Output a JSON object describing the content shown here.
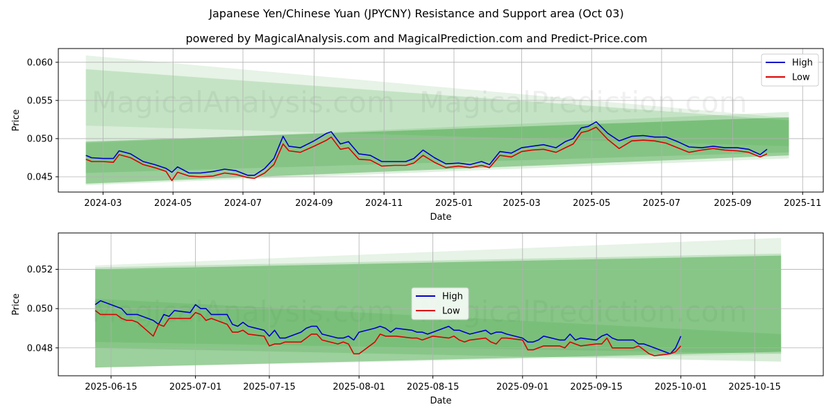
{
  "title": "Japanese Yen/Chinese Yuan (JPYCNY) Resistance and Support area (Oct 03)",
  "subtitle": "powered by MagicalAnalysis.com and MagicalPrediction.com and Predict-Price.com",
  "watermarks": [
    "MagicalAnalysis.com",
    "MagicalPrediction.com"
  ],
  "colors": {
    "high": "#0000cc",
    "low": "#dd0000",
    "band": "#2e9a2e",
    "grid": "#b0b0b0"
  },
  "chart_data": [
    {
      "type": "line",
      "xlabel": "Date",
      "ylabel": "Price",
      "xlim": [
        "2024-01-22",
        "2025-11-19"
      ],
      "ylim": [
        0.043,
        0.0618
      ],
      "grid": true,
      "legend": {
        "position": "top-right",
        "entries": [
          "High",
          "Low"
        ]
      },
      "x_ticks": [
        {
          "date": "2024-03-01",
          "label": "2024-03"
        },
        {
          "date": "2024-05-01",
          "label": "2024-05"
        },
        {
          "date": "2024-07-01",
          "label": "2024-07"
        },
        {
          "date": "2024-09-01",
          "label": "2024-09"
        },
        {
          "date": "2024-11-01",
          "label": "2024-11"
        },
        {
          "date": "2025-01-01",
          "label": "2025-01"
        },
        {
          "date": "2025-03-01",
          "label": "2025-03"
        },
        {
          "date": "2025-05-01",
          "label": "2025-05"
        },
        {
          "date": "2025-07-01",
          "label": "2025-07"
        },
        {
          "date": "2025-09-01",
          "label": "2025-09"
        },
        {
          "date": "2025-11-01",
          "label": "2025-11"
        }
      ],
      "y_ticks": [
        {
          "value": 0.045,
          "label": "0.045"
        },
        {
          "value": 0.05,
          "label": "0.050"
        },
        {
          "value": 0.055,
          "label": "0.055"
        },
        {
          "value": 0.06,
          "label": "0.060"
        }
      ],
      "bands": [
        {
          "x": [
            "2024-02-15",
            "2025-10-20"
          ],
          "upper": [
            0.0609,
            0.0527
          ],
          "lower": [
            0.0517,
            0.049
          ],
          "opacity": 0.12
        },
        {
          "x": [
            "2024-02-15",
            "2025-10-20"
          ],
          "upper": [
            0.0591,
            0.0524
          ],
          "lower": [
            0.0455,
            0.0482
          ],
          "opacity": 0.18
        },
        {
          "x": [
            "2024-02-15",
            "2025-10-20"
          ],
          "upper": [
            0.0496,
            0.0528
          ],
          "lower": [
            0.0441,
            0.0478
          ],
          "opacity": 0.4
        },
        {
          "x": [
            "2024-02-15",
            "2025-10-20"
          ],
          "upper": [
            0.0494,
            0.0535
          ],
          "lower": [
            0.0439,
            0.0474
          ],
          "opacity": 0.15
        }
      ],
      "series": [
        {
          "name": "High",
          "x": [
            "2024-02-15",
            "2024-02-20",
            "2024-03-01",
            "2024-03-10",
            "2024-03-15",
            "2024-03-25",
            "2024-04-05",
            "2024-04-15",
            "2024-04-25",
            "2024-04-30",
            "2024-05-05",
            "2024-05-15",
            "2024-05-25",
            "2024-06-05",
            "2024-06-15",
            "2024-06-25",
            "2024-07-05",
            "2024-07-11",
            "2024-07-20",
            "2024-07-28",
            "2024-08-05",
            "2024-08-10",
            "2024-08-20",
            "2024-09-01",
            "2024-09-12",
            "2024-09-16",
            "2024-09-24",
            "2024-10-01",
            "2024-10-10",
            "2024-10-20",
            "2024-10-30",
            "2024-11-10",
            "2024-11-20",
            "2024-11-27",
            "2024-12-05",
            "2024-12-15",
            "2024-12-25",
            "2025-01-05",
            "2025-01-15",
            "2025-01-25",
            "2025-02-01",
            "2025-02-10",
            "2025-02-20",
            "2025-03-01",
            "2025-03-10",
            "2025-03-20",
            "2025-03-31",
            "2025-04-08",
            "2025-04-15",
            "2025-04-22",
            "2025-04-28",
            "2025-05-05",
            "2025-05-15",
            "2025-05-25",
            "2025-06-05",
            "2025-06-15",
            "2025-06-25",
            "2025-07-05",
            "2025-07-15",
            "2025-07-25",
            "2025-08-05",
            "2025-08-15",
            "2025-08-25",
            "2025-09-05",
            "2025-09-15",
            "2025-09-25",
            "2025-10-01"
          ],
          "values": [
            0.0478,
            0.0475,
            0.0474,
            0.0474,
            0.0484,
            0.048,
            0.047,
            0.0466,
            0.0461,
            0.0456,
            0.0463,
            0.0455,
            0.0455,
            0.0457,
            0.046,
            0.0458,
            0.0452,
            0.0452,
            0.0461,
            0.0474,
            0.0503,
            0.049,
            0.0488,
            0.0497,
            0.0507,
            0.0509,
            0.0493,
            0.0496,
            0.048,
            0.0478,
            0.047,
            0.047,
            0.047,
            0.0474,
            0.0485,
            0.0475,
            0.0467,
            0.0468,
            0.0466,
            0.047,
            0.0466,
            0.0483,
            0.0481,
            0.0488,
            0.049,
            0.0492,
            0.0488,
            0.0496,
            0.05,
            0.0514,
            0.0516,
            0.0522,
            0.0507,
            0.0497,
            0.0503,
            0.0504,
            0.0502,
            0.0502,
            0.0496,
            0.0489,
            0.0488,
            0.049,
            0.0488,
            0.0488,
            0.0486,
            0.0479,
            0.0486
          ]
        },
        {
          "name": "Low",
          "x": [
            "2024-02-15",
            "2024-02-20",
            "2024-03-01",
            "2024-03-10",
            "2024-03-15",
            "2024-03-25",
            "2024-04-05",
            "2024-04-15",
            "2024-04-25",
            "2024-04-30",
            "2024-05-05",
            "2024-05-15",
            "2024-05-25",
            "2024-06-05",
            "2024-06-15",
            "2024-06-25",
            "2024-07-05",
            "2024-07-11",
            "2024-07-20",
            "2024-07-28",
            "2024-08-05",
            "2024-08-10",
            "2024-08-20",
            "2024-09-01",
            "2024-09-12",
            "2024-09-16",
            "2024-09-24",
            "2024-10-01",
            "2024-10-10",
            "2024-10-20",
            "2024-10-30",
            "2024-11-10",
            "2024-11-20",
            "2024-11-27",
            "2024-12-05",
            "2024-12-15",
            "2024-12-25",
            "2025-01-05",
            "2025-01-15",
            "2025-01-25",
            "2025-02-01",
            "2025-02-10",
            "2025-02-20",
            "2025-03-01",
            "2025-03-10",
            "2025-03-20",
            "2025-03-31",
            "2025-04-08",
            "2025-04-15",
            "2025-04-22",
            "2025-04-28",
            "2025-05-05",
            "2025-05-15",
            "2025-05-25",
            "2025-06-05",
            "2025-06-15",
            "2025-06-25",
            "2025-07-05",
            "2025-07-15",
            "2025-07-25",
            "2025-08-05",
            "2025-08-15",
            "2025-08-25",
            "2025-09-05",
            "2025-09-15",
            "2025-09-25",
            "2025-10-01"
          ],
          "values": [
            0.0473,
            0.047,
            0.047,
            0.0469,
            0.0479,
            0.0475,
            0.0466,
            0.0462,
            0.0457,
            0.0445,
            0.0456,
            0.0451,
            0.045,
            0.0451,
            0.0455,
            0.0453,
            0.0449,
            0.0448,
            0.0455,
            0.0466,
            0.0493,
            0.0484,
            0.0482,
            0.049,
            0.0498,
            0.0502,
            0.0486,
            0.0488,
            0.0473,
            0.0472,
            0.0464,
            0.0465,
            0.0465,
            0.0468,
            0.0478,
            0.0469,
            0.0462,
            0.0464,
            0.0462,
            0.0465,
            0.0462,
            0.0478,
            0.0476,
            0.0483,
            0.0485,
            0.0486,
            0.0482,
            0.0488,
            0.0493,
            0.0508,
            0.051,
            0.0515,
            0.0499,
            0.0487,
            0.0497,
            0.0498,
            0.0497,
            0.0494,
            0.0488,
            0.0482,
            0.0485,
            0.0487,
            0.0485,
            0.0484,
            0.0482,
            0.0476,
            0.048
          ]
        }
      ]
    },
    {
      "type": "line",
      "xlabel": "Date",
      "ylabel": "Price",
      "xlim": [
        "2025-06-05",
        "2025-10-28"
      ],
      "ylim": [
        0.04658,
        0.05385
      ],
      "grid": true,
      "legend": {
        "position": "center",
        "entries": [
          "High",
          "Low"
        ]
      },
      "x_ticks": [
        {
          "date": "2025-06-15",
          "label": "2025-06-15"
        },
        {
          "date": "2025-07-01",
          "label": "2025-07-01"
        },
        {
          "date": "2025-07-15",
          "label": "2025-07-15"
        },
        {
          "date": "2025-08-01",
          "label": "2025-08-01"
        },
        {
          "date": "2025-08-15",
          "label": "2025-08-15"
        },
        {
          "date": "2025-09-01",
          "label": "2025-09-01"
        },
        {
          "date": "2025-09-15",
          "label": "2025-09-15"
        },
        {
          "date": "2025-10-01",
          "label": "2025-10-01"
        },
        {
          "date": "2025-10-15",
          "label": "2025-10-15"
        }
      ],
      "y_ticks": [
        {
          "value": 0.048,
          "label": "0.048"
        },
        {
          "value": 0.05,
          "label": "0.050"
        },
        {
          "value": 0.052,
          "label": "0.052"
        }
      ],
      "bands": [
        {
          "x": [
            "2025-06-12",
            "2025-10-20"
          ],
          "upper": [
            0.0522,
            0.0536
          ],
          "lower": [
            0.047,
            0.0477
          ],
          "opacity": 0.12
        },
        {
          "x": [
            "2025-06-12",
            "2025-10-20"
          ],
          "upper": [
            0.0521,
            0.0528
          ],
          "lower": [
            0.048,
            0.0473
          ],
          "opacity": 0.18
        },
        {
          "x": [
            "2025-06-12",
            "2025-10-20"
          ],
          "upper": [
            0.052,
            0.0527
          ],
          "lower": [
            0.047,
            0.0478
          ],
          "opacity": 0.4
        },
        {
          "x": [
            "2025-06-12",
            "2025-10-20"
          ],
          "upper": [
            0.0505,
            0.0487
          ],
          "lower": [
            0.0483,
            0.0477
          ],
          "opacity": 0.15
        }
      ],
      "series": [
        {
          "name": "High",
          "x": [
            "2025-06-12",
            "2025-06-13",
            "2025-06-16",
            "2025-06-17",
            "2025-06-18",
            "2025-06-19",
            "2025-06-20",
            "2025-06-23",
            "2025-06-24",
            "2025-06-25",
            "2025-06-26",
            "2025-06-27",
            "2025-06-30",
            "2025-07-01",
            "2025-07-02",
            "2025-07-03",
            "2025-07-04",
            "2025-07-07",
            "2025-07-08",
            "2025-07-09",
            "2025-07-10",
            "2025-07-11",
            "2025-07-14",
            "2025-07-15",
            "2025-07-16",
            "2025-07-17",
            "2025-07-18",
            "2025-07-21",
            "2025-07-22",
            "2025-07-23",
            "2025-07-24",
            "2025-07-25",
            "2025-07-28",
            "2025-07-29",
            "2025-07-30",
            "2025-07-31",
            "2025-08-01",
            "2025-08-04",
            "2025-08-05",
            "2025-08-06",
            "2025-08-07",
            "2025-08-08",
            "2025-08-11",
            "2025-08-12",
            "2025-08-13",
            "2025-08-14",
            "2025-08-15",
            "2025-08-18",
            "2025-08-19",
            "2025-08-20",
            "2025-08-21",
            "2025-08-22",
            "2025-08-25",
            "2025-08-26",
            "2025-08-27",
            "2025-08-28",
            "2025-08-29",
            "2025-09-01",
            "2025-09-02",
            "2025-09-03",
            "2025-09-04",
            "2025-09-05",
            "2025-09-08",
            "2025-09-09",
            "2025-09-10",
            "2025-09-11",
            "2025-09-12",
            "2025-09-15",
            "2025-09-16",
            "2025-09-17",
            "2025-09-18",
            "2025-09-19",
            "2025-09-22",
            "2025-09-23",
            "2025-09-24",
            "2025-09-25",
            "2025-09-26",
            "2025-09-29",
            "2025-09-30",
            "2025-10-01"
          ],
          "values": [
            0.0502,
            0.0504,
            0.0501,
            0.05,
            0.0497,
            0.0497,
            0.0497,
            0.0494,
            0.0492,
            0.0497,
            0.0496,
            0.0499,
            0.0498,
            0.0502,
            0.05,
            0.05,
            0.0497,
            0.0497,
            0.0492,
            0.0491,
            0.0493,
            0.0491,
            0.0489,
            0.0486,
            0.0489,
            0.0485,
            0.0485,
            0.0488,
            0.049,
            0.0491,
            0.0491,
            0.0487,
            0.0485,
            0.0485,
            0.0486,
            0.0484,
            0.0488,
            0.049,
            0.0491,
            0.049,
            0.0488,
            0.049,
            0.0489,
            0.0488,
            0.0488,
            0.0487,
            0.0488,
            0.0491,
            0.0489,
            0.0489,
            0.0488,
            0.0487,
            0.0489,
            0.0487,
            0.0488,
            0.0488,
            0.0487,
            0.0485,
            0.0483,
            0.0483,
            0.0484,
            0.0486,
            0.0484,
            0.0484,
            0.0487,
            0.0484,
            0.0485,
            0.0484,
            0.0486,
            0.0487,
            0.0485,
            0.0484,
            0.0484,
            0.0482,
            0.0482,
            0.0481,
            0.048,
            0.0477,
            0.048,
            0.0486
          ]
        },
        {
          "name": "Low",
          "x": [
            "2025-06-12",
            "2025-06-13",
            "2025-06-16",
            "2025-06-17",
            "2025-06-18",
            "2025-06-19",
            "2025-06-20",
            "2025-06-23",
            "2025-06-24",
            "2025-06-25",
            "2025-06-26",
            "2025-06-27",
            "2025-06-30",
            "2025-07-01",
            "2025-07-02",
            "2025-07-03",
            "2025-07-04",
            "2025-07-07",
            "2025-07-08",
            "2025-07-09",
            "2025-07-10",
            "2025-07-11",
            "2025-07-14",
            "2025-07-15",
            "2025-07-16",
            "2025-07-17",
            "2025-07-18",
            "2025-07-21",
            "2025-07-22",
            "2025-07-23",
            "2025-07-24",
            "2025-07-25",
            "2025-07-28",
            "2025-07-29",
            "2025-07-30",
            "2025-07-31",
            "2025-08-01",
            "2025-08-04",
            "2025-08-05",
            "2025-08-06",
            "2025-08-07",
            "2025-08-08",
            "2025-08-11",
            "2025-08-12",
            "2025-08-13",
            "2025-08-14",
            "2025-08-15",
            "2025-08-18",
            "2025-08-19",
            "2025-08-20",
            "2025-08-21",
            "2025-08-22",
            "2025-08-25",
            "2025-08-26",
            "2025-08-27",
            "2025-08-28",
            "2025-08-29",
            "2025-09-01",
            "2025-09-02",
            "2025-09-03",
            "2025-09-04",
            "2025-09-05",
            "2025-09-08",
            "2025-09-09",
            "2025-09-10",
            "2025-09-11",
            "2025-09-12",
            "2025-09-15",
            "2025-09-16",
            "2025-09-17",
            "2025-09-18",
            "2025-09-19",
            "2025-09-22",
            "2025-09-23",
            "2025-09-24",
            "2025-09-25",
            "2025-09-26",
            "2025-09-29",
            "2025-09-30",
            "2025-10-01"
          ],
          "values": [
            0.0499,
            0.0497,
            0.0497,
            0.0495,
            0.0494,
            0.0494,
            0.0493,
            0.0486,
            0.0492,
            0.0491,
            0.0495,
            0.0495,
            0.0495,
            0.0498,
            0.0497,
            0.0494,
            0.0495,
            0.0492,
            0.0488,
            0.0488,
            0.0489,
            0.0487,
            0.0486,
            0.0481,
            0.0482,
            0.0482,
            0.0483,
            0.0483,
            0.0485,
            0.0487,
            0.0487,
            0.0484,
            0.0482,
            0.0483,
            0.0482,
            0.0477,
            0.0477,
            0.0483,
            0.0487,
            0.0486,
            0.0486,
            0.0486,
            0.0485,
            0.0485,
            0.0484,
            0.0485,
            0.0486,
            0.0485,
            0.0486,
            0.0484,
            0.0483,
            0.0484,
            0.0485,
            0.0483,
            0.0482,
            0.0485,
            0.0485,
            0.0484,
            0.0479,
            0.0479,
            0.048,
            0.0481,
            0.0481,
            0.048,
            0.0483,
            0.0482,
            0.0481,
            0.0482,
            0.0482,
            0.0485,
            0.048,
            0.048,
            0.048,
            0.0481,
            0.0479,
            0.0477,
            0.0476,
            0.0477,
            0.0478,
            0.0481
          ]
        }
      ]
    }
  ]
}
